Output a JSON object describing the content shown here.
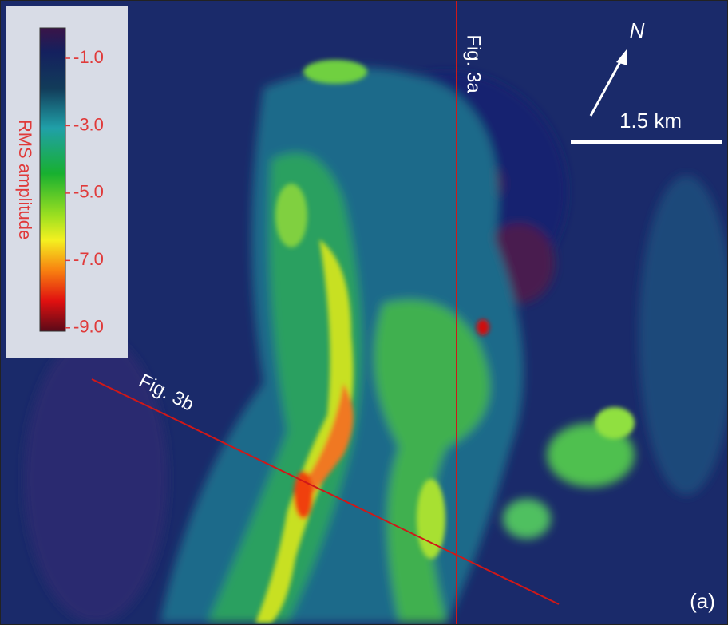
{
  "colorbar": {
    "label": "RMS amplitude",
    "lim": [
      -0.1,
      -9.1
    ],
    "ticks": [
      {
        "value": -1,
        "label": "-1.0"
      },
      {
        "value": -3,
        "label": "-3.0"
      },
      {
        "value": -5,
        "label": "-5.0"
      },
      {
        "value": -7,
        "label": "-7.0"
      },
      {
        "value": -9,
        "label": "-9.0"
      }
    ]
  },
  "sections": [
    "Fig. 3a",
    "Fig. 3b"
  ],
  "north": "N",
  "scale_bar": "1.5 km",
  "panel_label": "(a)"
}
